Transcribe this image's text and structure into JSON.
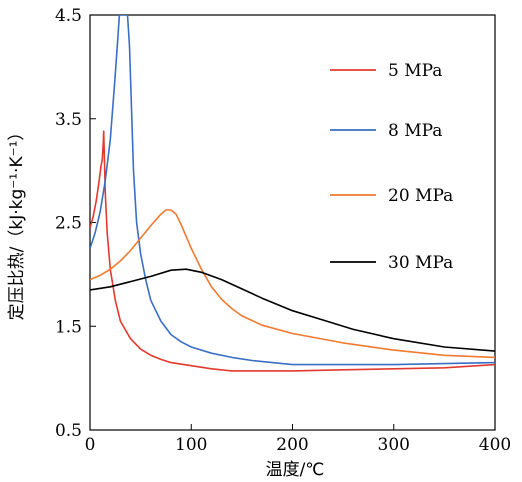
{
  "chart_data": {
    "type": "line",
    "xlabel": "温度/℃",
    "ylabel": "定压比热/（kJ·kg⁻¹·K⁻¹）",
    "xlim": [
      0,
      400
    ],
    "ylim": [
      0.5,
      4.5
    ],
    "xticks": [
      0,
      100,
      200,
      300,
      400
    ],
    "yticks": [
      0.5,
      1.5,
      2.5,
      3.5,
      4.5
    ],
    "x_tick_labels": [
      "0",
      "100",
      "200",
      "300",
      "400"
    ],
    "y_tick_labels": [
      "0.5",
      "1.5",
      "2.5",
      "3.5",
      "4.5"
    ],
    "grid": false,
    "legend_position": "right",
    "series": [
      {
        "name": "5 MPa",
        "color": "#e23a2e",
        "points": [
          [
            0,
            2.45
          ],
          [
            3,
            2.55
          ],
          [
            6,
            2.7
          ],
          [
            9,
            2.9
          ],
          [
            11,
            3.05
          ],
          [
            12,
            3.1
          ],
          [
            13,
            3.25
          ],
          [
            13.5,
            3.38
          ],
          [
            14,
            3.2
          ],
          [
            15,
            2.8
          ],
          [
            17,
            2.4
          ],
          [
            20,
            2.05
          ],
          [
            25,
            1.75
          ],
          [
            30,
            1.55
          ],
          [
            40,
            1.38
          ],
          [
            50,
            1.28
          ],
          [
            60,
            1.22
          ],
          [
            70,
            1.18
          ],
          [
            80,
            1.15
          ],
          [
            100,
            1.12
          ],
          [
            120,
            1.09
          ],
          [
            140,
            1.07
          ],
          [
            160,
            1.07
          ],
          [
            200,
            1.07
          ],
          [
            250,
            1.08
          ],
          [
            300,
            1.09
          ],
          [
            350,
            1.1
          ],
          [
            400,
            1.13
          ]
        ]
      },
      {
        "name": "8 MPa",
        "color": "#3a6fc4",
        "points": [
          [
            0,
            2.25
          ],
          [
            5,
            2.4
          ],
          [
            10,
            2.6
          ],
          [
            15,
            2.9
          ],
          [
            20,
            3.3
          ],
          [
            24,
            3.8
          ],
          [
            27,
            4.2
          ],
          [
            29,
            4.5
          ],
          [
            32,
            4.5
          ],
          [
            35,
            4.5
          ],
          [
            37,
            4.5
          ],
          [
            39,
            4.2
          ],
          [
            41,
            3.6
          ],
          [
            43,
            3.0
          ],
          [
            46,
            2.5
          ],
          [
            50,
            2.2
          ],
          [
            55,
            1.95
          ],
          [
            60,
            1.75
          ],
          [
            70,
            1.55
          ],
          [
            80,
            1.42
          ],
          [
            90,
            1.35
          ],
          [
            100,
            1.3
          ],
          [
            120,
            1.24
          ],
          [
            140,
            1.2
          ],
          [
            160,
            1.17
          ],
          [
            180,
            1.15
          ],
          [
            200,
            1.13
          ],
          [
            250,
            1.13
          ],
          [
            300,
            1.13
          ],
          [
            350,
            1.14
          ],
          [
            400,
            1.15
          ]
        ]
      },
      {
        "name": "20 MPa",
        "color": "#f07a30",
        "points": [
          [
            0,
            1.95
          ],
          [
            10,
            1.99
          ],
          [
            20,
            2.05
          ],
          [
            30,
            2.13
          ],
          [
            40,
            2.23
          ],
          [
            50,
            2.35
          ],
          [
            60,
            2.47
          ],
          [
            70,
            2.58
          ],
          [
            75,
            2.62
          ],
          [
            80,
            2.62
          ],
          [
            85,
            2.58
          ],
          [
            90,
            2.48
          ],
          [
            100,
            2.25
          ],
          [
            110,
            2.05
          ],
          [
            120,
            1.88
          ],
          [
            130,
            1.76
          ],
          [
            140,
            1.67
          ],
          [
            150,
            1.6
          ],
          [
            170,
            1.51
          ],
          [
            200,
            1.43
          ],
          [
            250,
            1.34
          ],
          [
            300,
            1.27
          ],
          [
            350,
            1.22
          ],
          [
            400,
            1.2
          ]
        ]
      },
      {
        "name": "30 MPa",
        "color": "#000000",
        "points": [
          [
            0,
            1.85
          ],
          [
            20,
            1.88
          ],
          [
            40,
            1.93
          ],
          [
            60,
            1.98
          ],
          [
            80,
            2.04
          ],
          [
            95,
            2.05
          ],
          [
            110,
            2.02
          ],
          [
            130,
            1.95
          ],
          [
            150,
            1.86
          ],
          [
            170,
            1.77
          ],
          [
            200,
            1.65
          ],
          [
            230,
            1.56
          ],
          [
            260,
            1.47
          ],
          [
            300,
            1.38
          ],
          [
            350,
            1.3
          ],
          [
            400,
            1.26
          ]
        ]
      }
    ]
  }
}
